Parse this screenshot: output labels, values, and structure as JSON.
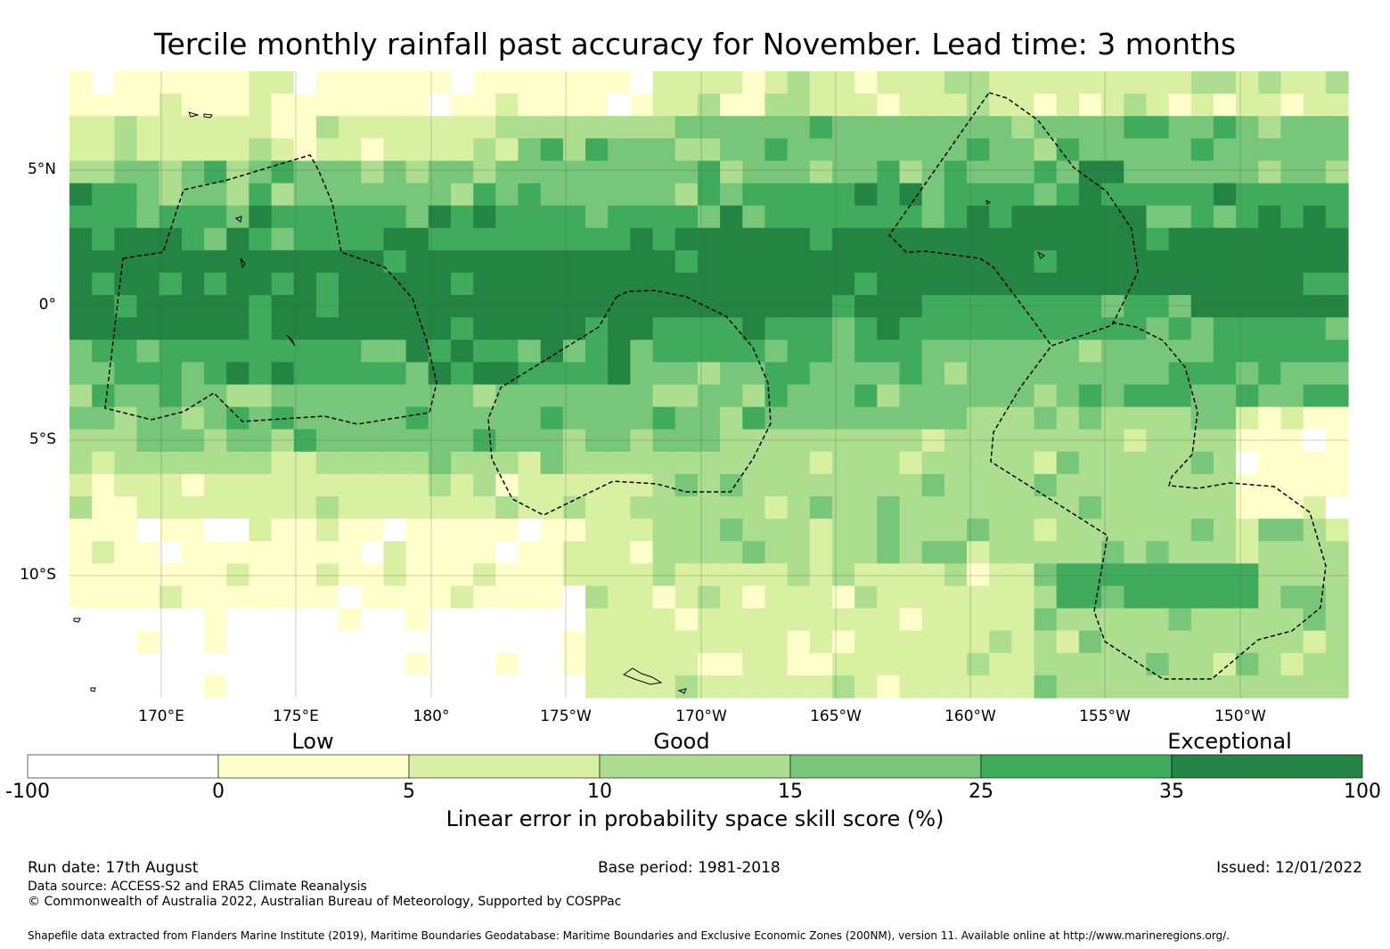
{
  "title": "Tercile monthly rainfall past accuracy for November. Lead time: 3 months",
  "map": {
    "lon_ticks": [
      "170°E",
      "175°E",
      "180°",
      "175°W",
      "170°W",
      "165°W",
      "160°W",
      "155°W",
      "150°W"
    ],
    "lat_ticks": [
      "5°N",
      "0°",
      "5°S",
      "10°S"
    ],
    "lat_extent": [
      8.5,
      -14.5
    ]
  },
  "legend": {
    "categories": [
      "Low",
      "Good",
      "Exceptional"
    ],
    "bounds": [
      "-100",
      "0",
      "5",
      "10",
      "15",
      "25",
      "35",
      "100"
    ],
    "colors": [
      "#ffffff",
      "#ffffcc",
      "#d9f0a3",
      "#addd8e",
      "#78c679",
      "#41ab5d",
      "#238443"
    ],
    "title": "Linear error in probability space skill score (%)"
  },
  "footer": {
    "run_date": "Run date: 17th August",
    "base_period": "Base period: 1981-2018",
    "issued": "Issued: 12/01/2022",
    "data_source": "Data source: ACCESS-S2 and ERA5 Climate Reanalysis",
    "copyright": "© Commonwealth of Australia 2022, Australian Bureau of Meteorology, Supported by COSPPac",
    "shapefile": "Shapefile data extracted from Flanders Marine Institute (2019), Maritime Boundaries Geodatabase: Maritime Boundaries and Exclusive Economic Zones (200NM), version 11. Available online at http://www.marineregions.org/."
  }
}
